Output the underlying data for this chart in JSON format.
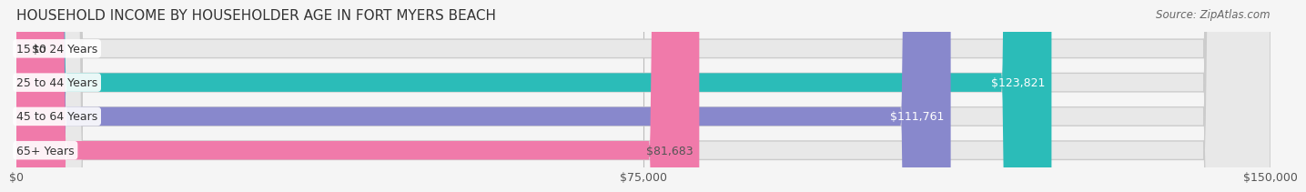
{
  "title": "HOUSEHOLD INCOME BY HOUSEHOLDER AGE IN FORT MYERS BEACH",
  "source": "Source: ZipAtlas.com",
  "categories": [
    "15 to 24 Years",
    "25 to 44 Years",
    "45 to 64 Years",
    "65+ Years"
  ],
  "values": [
    0,
    123821,
    111761,
    81683
  ],
  "bar_colors": [
    "#c9a8d4",
    "#2bbcb8",
    "#8888cc",
    "#f07aaa"
  ],
  "label_colors": [
    "#555555",
    "#ffffff",
    "#ffffff",
    "#555555"
  ],
  "xlim": [
    0,
    150000
  ],
  "xticks": [
    0,
    75000,
    150000
  ],
  "xtick_labels": [
    "$0",
    "$75,000",
    "$150,000"
  ],
  "bar_height": 0.55,
  "background_color": "#f0f0f0",
  "bar_bg_color": "#e8e8e8",
  "title_fontsize": 11,
  "source_fontsize": 8.5,
  "label_fontsize": 9,
  "tick_fontsize": 9,
  "value_labels": [
    "$0",
    "$123,821",
    "$111,761",
    "$81,683"
  ]
}
